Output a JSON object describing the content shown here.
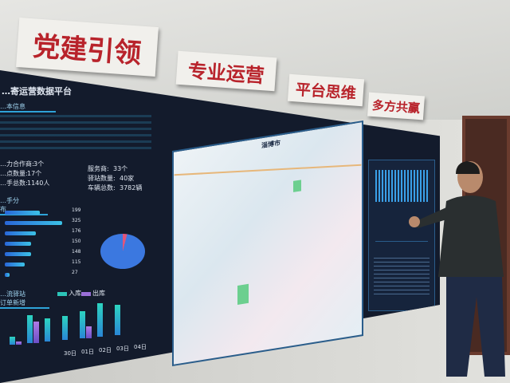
{
  "wall_signs": [
    "党建引领",
    "专业运营",
    "平台思维",
    "多方共赢"
  ],
  "screen": {
    "title": "…寄运营数据平台",
    "basic_info": {
      "heading": "…本信息",
      "stats": [
        {
          "label": "…力合作商:",
          "value": "3个"
        },
        {
          "label": "…点数量:",
          "value": "17个"
        },
        {
          "label": "…手总数:",
          "value": "1140人"
        },
        {
          "label": "服务商:",
          "value": "33个"
        },
        {
          "label": "驿站数量:",
          "value": "40家"
        },
        {
          "label": "车辆总数:",
          "value": "3782辆"
        }
      ]
    },
    "distribution": {
      "heading": "…手分布",
      "values": [
        199,
        325,
        176,
        150,
        148,
        115,
        27
      ]
    },
    "orders": {
      "heading": "…流驿站订单新增",
      "legend": [
        "入库",
        "出库"
      ],
      "x_labels": [
        "30日",
        "01日",
        "02日",
        "03日",
        "04日"
      ]
    },
    "map": {
      "title": "淄博市"
    }
  },
  "colors": {
    "sign_text": "#b8232b",
    "screen_bg": "#131b2c",
    "accent": "#2ea3d8"
  }
}
